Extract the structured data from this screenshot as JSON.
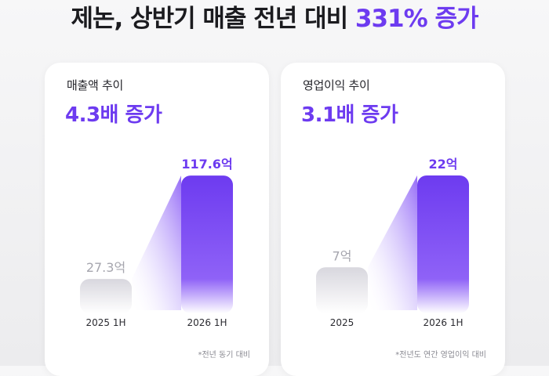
{
  "headline": {
    "prefix": "제논, 상반기 매출 전년 대비 ",
    "accent": "331% 증가",
    "accent_color": "#6d3bf0"
  },
  "colors": {
    "accent": "#6d3bf0",
    "bar_prev": "#dcdbe0",
    "label_prev": "#a6a6ae"
  },
  "chart_data": [
    {
      "type": "bar",
      "label": "매출액 추이",
      "headline": "4.3배 증가",
      "categories": [
        "2025 1H",
        "2026 1H"
      ],
      "values": [
        27.3,
        117.6
      ],
      "value_labels": [
        "27.3억",
        "117.6억"
      ],
      "unit": "억",
      "ylim": [
        0,
        130
      ],
      "footnote": "*전년 동기 대비"
    },
    {
      "type": "bar",
      "label": "영업이익 추이",
      "headline": "3.1배 증가",
      "categories": [
        "2025",
        "2026 1H"
      ],
      "values": [
        7,
        22
      ],
      "value_labels": [
        "7억",
        "22억"
      ],
      "unit": "억",
      "footnote": "*전년도 연간 영업이익 대비"
    }
  ]
}
